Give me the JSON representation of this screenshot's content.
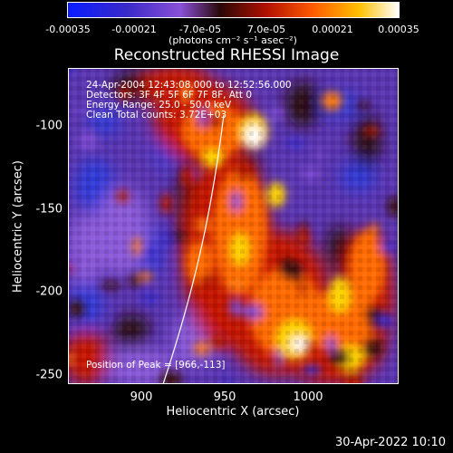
{
  "colorbar": {
    "ticks": [
      "-0.00035",
      "-0.00021",
      "-7.0e-05",
      "7.0e-05",
      "0.00021",
      "0.00035"
    ],
    "unit": "(photons cm⁻² s⁻¹ asec⁻²)"
  },
  "title": "Reconstructed RHESSI Image",
  "info": {
    "time": "24-Apr-2004 12:43:08.000 to 12:52:56.000",
    "detectors": "Detectors: 3F 4F 5F 6F 7F 8F, Att 0",
    "energy": "Energy Range: 25.0 - 50.0 keV",
    "clean": "Clean     Total counts: 3.72E+03"
  },
  "peak": "Position of Peak = [966,-113]",
  "axes": {
    "xlabel": "Heliocentric X (arcsec)",
    "ylabel": "Heliocentric Y (arcsec)",
    "xticks": [
      "900",
      "950",
      "1000"
    ],
    "yticks": [
      "-100",
      "-150",
      "-200",
      "-250"
    ]
  },
  "stamp": "30-Apr-2022 10:10"
}
